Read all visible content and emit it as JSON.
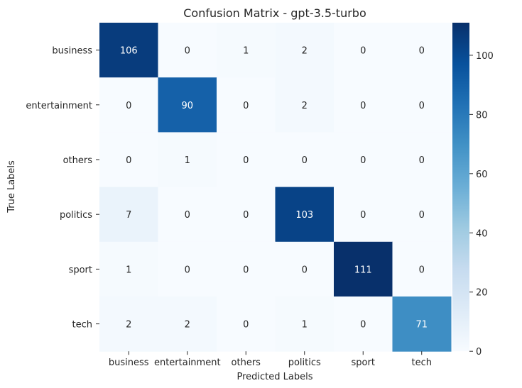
{
  "chart_data": {
    "type": "heatmap",
    "title": "Confusion Matrix - gpt-3.5-turbo",
    "xlabel": "Predicted Labels",
    "ylabel": "True Labels",
    "x_categories": [
      "business",
      "entertainment",
      "others",
      "politics",
      "sport",
      "tech"
    ],
    "y_categories": [
      "business",
      "entertainment",
      "others",
      "politics",
      "sport",
      "tech"
    ],
    "matrix": [
      [
        106,
        0,
        1,
        2,
        0,
        0
      ],
      [
        0,
        90,
        0,
        2,
        0,
        0
      ],
      [
        0,
        1,
        0,
        0,
        0,
        0
      ],
      [
        7,
        0,
        0,
        103,
        0,
        0
      ],
      [
        1,
        0,
        0,
        0,
        111,
        0
      ],
      [
        2,
        2,
        0,
        1,
        0,
        71
      ]
    ],
    "colormap": "Blues",
    "color_range": [
      0,
      111
    ],
    "colorbar_ticks": [
      0,
      20,
      40,
      60,
      80,
      100
    ],
    "annotations": true,
    "grid": false,
    "colors": {
      "low": "#f7fbff",
      "high": "#08306b",
      "text_dark": "#262626",
      "text_light": "#ffffff"
    }
  }
}
